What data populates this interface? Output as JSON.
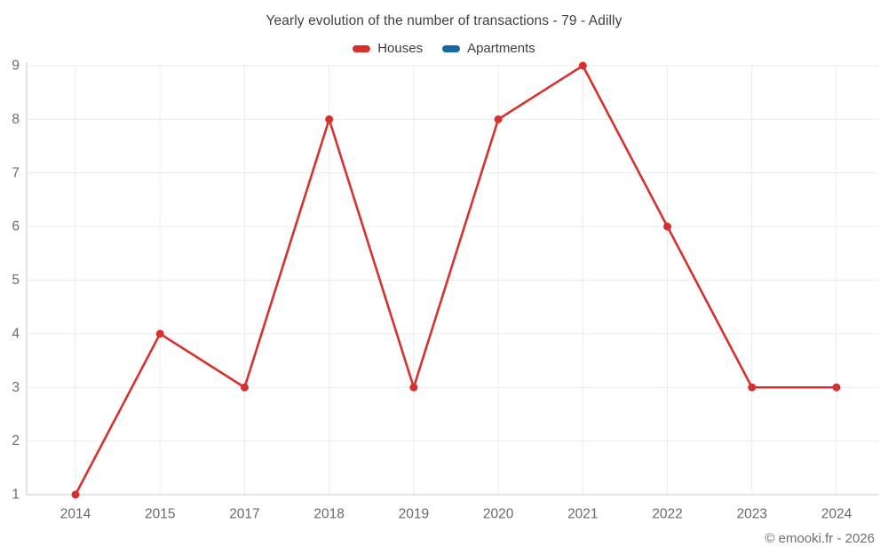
{
  "header": {
    "title": "Yearly evolution of the number of transactions - 79 - Adilly"
  },
  "legend": [
    {
      "label": "Houses",
      "color": "#d7312e"
    },
    {
      "label": "Apartments",
      "color": "#17699e"
    }
  ],
  "footer": {
    "copyright": "© emooki.fr - 2026"
  },
  "colors": {
    "houses": "#d7312e",
    "apartments": "#17699e",
    "axis_line": "#c9c9c9",
    "grid_line": "#ebebeb",
    "tick_label": "#6a6a6a",
    "title_text": "#404040"
  },
  "chart_data": {
    "type": "line",
    "title": "Yearly evolution of the number of transactions - 79 - Adilly",
    "categories": [
      "2014",
      "2015",
      "2017",
      "2018",
      "2019",
      "2020",
      "2021",
      "2022",
      "2023",
      "2024"
    ],
    "series": [
      {
        "name": "Houses",
        "color": "#d7312e",
        "values": [
          1,
          4,
          3,
          8,
          3,
          8,
          9,
          6,
          3,
          3
        ]
      },
      {
        "name": "Apartments",
        "color": "#17699e",
        "values": []
      }
    ],
    "xlabel": "",
    "ylabel": "",
    "ylim": [
      1,
      9
    ],
    "yticks": [
      1,
      2,
      3,
      4,
      5,
      6,
      7,
      8,
      9
    ],
    "grid": true,
    "legend_position": "top",
    "markers": true
  }
}
